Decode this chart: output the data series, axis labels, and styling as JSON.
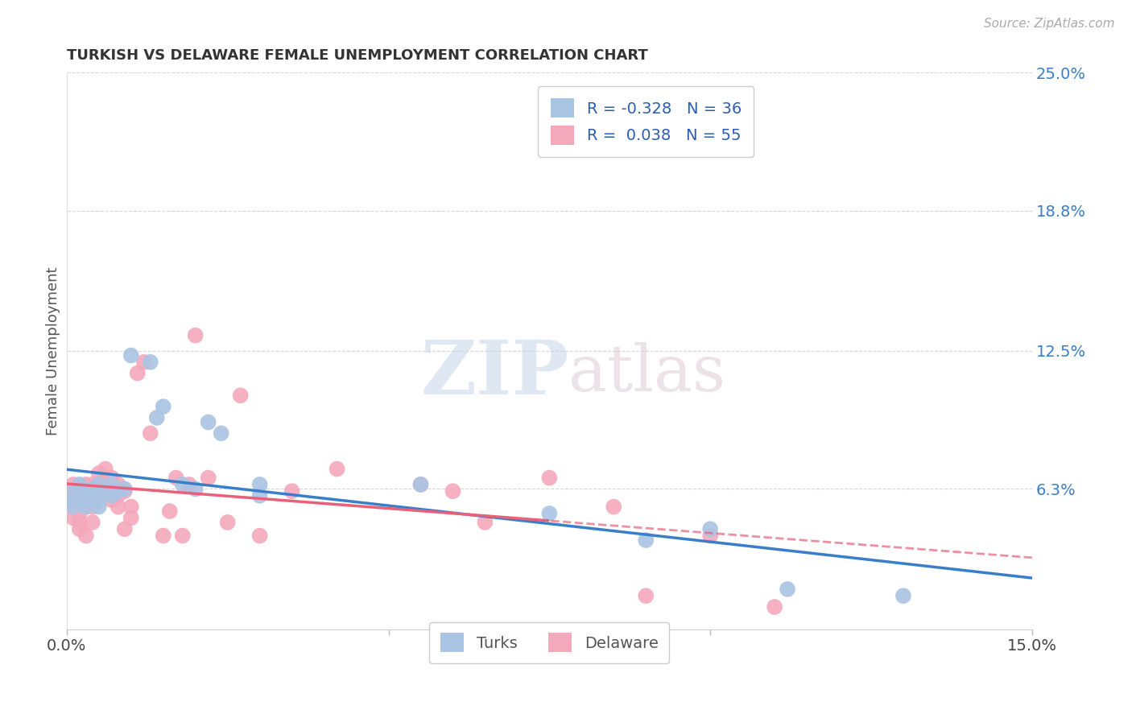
{
  "title": "TURKISH VS DELAWARE FEMALE UNEMPLOYMENT CORRELATION CHART",
  "source": "Source: ZipAtlas.com",
  "ylabel": "Female Unemployment",
  "x_min": 0.0,
  "x_max": 0.15,
  "y_min": 0.0,
  "y_max": 0.25,
  "y_tick_labels_right": [
    "25.0%",
    "18.8%",
    "12.5%",
    "6.3%"
  ],
  "y_tick_vals_right": [
    0.25,
    0.188,
    0.125,
    0.063
  ],
  "turks_color": "#aac4e4",
  "delaware_color": "#f4a8bc",
  "turks_line_color": "#3a7dc9",
  "delaware_line_color": "#e8607a",
  "R_turks": -0.328,
  "N_turks": 36,
  "R_delaware": 0.038,
  "N_delaware": 55,
  "turks_x": [
    0.001,
    0.001,
    0.001,
    0.002,
    0.002,
    0.002,
    0.003,
    0.003,
    0.003,
    0.004,
    0.004,
    0.004,
    0.005,
    0.005,
    0.005,
    0.006,
    0.007,
    0.007,
    0.008,
    0.009,
    0.01,
    0.013,
    0.014,
    0.015,
    0.018,
    0.02,
    0.022,
    0.024,
    0.03,
    0.03,
    0.055,
    0.075,
    0.09,
    0.1,
    0.112,
    0.13
  ],
  "turks_y": [
    0.062,
    0.058,
    0.055,
    0.065,
    0.06,
    0.058,
    0.062,
    0.058,
    0.055,
    0.063,
    0.06,
    0.058,
    0.065,
    0.058,
    0.055,
    0.062,
    0.065,
    0.06,
    0.062,
    0.063,
    0.123,
    0.12,
    0.095,
    0.1,
    0.065,
    0.063,
    0.093,
    0.088,
    0.065,
    0.06,
    0.065,
    0.052,
    0.04,
    0.045,
    0.018,
    0.015
  ],
  "delaware_x": [
    0.001,
    0.001,
    0.001,
    0.001,
    0.002,
    0.002,
    0.002,
    0.002,
    0.002,
    0.003,
    0.003,
    0.003,
    0.003,
    0.004,
    0.004,
    0.004,
    0.004,
    0.005,
    0.005,
    0.005,
    0.006,
    0.006,
    0.006,
    0.007,
    0.007,
    0.008,
    0.008,
    0.008,
    0.009,
    0.009,
    0.01,
    0.01,
    0.011,
    0.012,
    0.013,
    0.015,
    0.016,
    0.017,
    0.018,
    0.019,
    0.02,
    0.022,
    0.025,
    0.027,
    0.03,
    0.035,
    0.042,
    0.055,
    0.06,
    0.065,
    0.075,
    0.085,
    0.09,
    0.1,
    0.11
  ],
  "delaware_y": [
    0.065,
    0.06,
    0.055,
    0.05,
    0.062,
    0.058,
    0.052,
    0.048,
    0.045,
    0.065,
    0.06,
    0.055,
    0.042,
    0.065,
    0.06,
    0.055,
    0.048,
    0.07,
    0.065,
    0.06,
    0.072,
    0.068,
    0.062,
    0.068,
    0.058,
    0.065,
    0.06,
    0.055,
    0.062,
    0.045,
    0.055,
    0.05,
    0.115,
    0.12,
    0.088,
    0.042,
    0.053,
    0.068,
    0.042,
    0.065,
    0.132,
    0.068,
    0.048,
    0.105,
    0.042,
    0.062,
    0.072,
    0.065,
    0.062,
    0.048,
    0.068,
    0.055,
    0.015,
    0.042,
    0.01
  ],
  "watermark_zip": "ZIP",
  "watermark_atlas": "atlas",
  "background_color": "#ffffff",
  "grid_color": "#cccccc"
}
